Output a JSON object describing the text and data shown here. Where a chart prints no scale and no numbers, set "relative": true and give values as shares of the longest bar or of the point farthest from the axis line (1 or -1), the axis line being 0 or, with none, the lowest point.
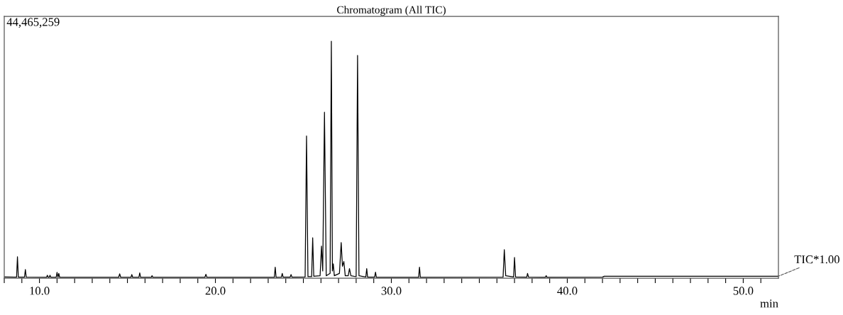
{
  "chart_data": {
    "type": "line",
    "title": "Chromatogram (All TIC)",
    "xlabel": "min",
    "relative": true,
    "grid": false,
    "legend": false,
    "marker": "none",
    "line_style": "solid",
    "annotations": [
      "44,465,259"
    ],
    "xlim": [
      8,
      52
    ],
    "xticks": [
      {
        "value": 8,
        "label": null
      },
      {
        "value": 9,
        "label": null
      },
      {
        "value": 10,
        "label": "10.0"
      },
      {
        "value": 11,
        "label": null
      },
      {
        "value": 12,
        "label": null
      },
      {
        "value": 13,
        "label": null
      },
      {
        "value": 14,
        "label": null
      },
      {
        "value": 15,
        "label": null
      },
      {
        "value": 16,
        "label": null
      },
      {
        "value": 17,
        "label": null
      },
      {
        "value": 18,
        "label": null
      },
      {
        "value": 19,
        "label": null
      },
      {
        "value": 20,
        "label": "20.0"
      },
      {
        "value": 21,
        "label": null
      },
      {
        "value": 22,
        "label": null
      },
      {
        "value": 23,
        "label": null
      },
      {
        "value": 24,
        "label": null
      },
      {
        "value": 25,
        "label": null
      },
      {
        "value": 26,
        "label": null
      },
      {
        "value": 27,
        "label": null
      },
      {
        "value": 28,
        "label": null
      },
      {
        "value": 29,
        "label": null
      },
      {
        "value": 30,
        "label": "30.0"
      },
      {
        "value": 31,
        "label": null
      },
      {
        "value": 32,
        "label": null
      },
      {
        "value": 33,
        "label": null
      },
      {
        "value": 34,
        "label": null
      },
      {
        "value": 35,
        "label": null
      },
      {
        "value": 36,
        "label": null
      },
      {
        "value": 37,
        "label": null
      },
      {
        "value": 38,
        "label": null
      },
      {
        "value": 39,
        "label": null
      },
      {
        "value": 40,
        "label": "40.0"
      },
      {
        "value": 41,
        "label": null
      },
      {
        "value": 42,
        "label": null
      },
      {
        "value": 43,
        "label": null
      },
      {
        "value": 44,
        "label": null
      },
      {
        "value": 45,
        "label": null
      },
      {
        "value": 46,
        "label": null
      },
      {
        "value": 47,
        "label": null
      },
      {
        "value": 48,
        "label": null
      },
      {
        "value": 49,
        "label": null
      },
      {
        "value": 50,
        "label": "50.0"
      },
      {
        "value": 51,
        "label": null
      }
    ],
    "series": [
      {
        "name": "TIC*1.00",
        "color": "#000000",
        "x": [
          8.0,
          8.6,
          8.7,
          8.75,
          8.8,
          9.15,
          9.2,
          9.25,
          10.4,
          10.45,
          10.5,
          10.55,
          10.6,
          10.65,
          10.95,
          11.0,
          11.05,
          11.1,
          11.15,
          14.5,
          14.56,
          14.62,
          15.2,
          15.25,
          15.3,
          15.65,
          15.7,
          15.75,
          16.35,
          16.4,
          16.45,
          19.4,
          19.46,
          19.52,
          23.35,
          23.4,
          23.45,
          23.75,
          23.8,
          23.85,
          24.25,
          24.3,
          24.35,
          25.1,
          25.18,
          25.26,
          25.47,
          25.53,
          25.59,
          25.95,
          26.03,
          26.1,
          26.2,
          26.3,
          26.52,
          26.59,
          26.65,
          26.7,
          26.76,
          27.05,
          27.15,
          27.22,
          27.3,
          27.38,
          27.55,
          27.62,
          27.7,
          28.0,
          28.08,
          28.16,
          28.55,
          28.6,
          28.65,
          29.05,
          29.1,
          29.15,
          31.55,
          31.6,
          31.65,
          36.35,
          36.42,
          36.5,
          36.95,
          37.0,
          37.06,
          37.7,
          37.74,
          37.8,
          38.75,
          38.8,
          38.85,
          42.0,
          42.1,
          52.0
        ],
        "values": [
          0.005,
          0.004,
          0.004,
          0.09,
          0.004,
          0.004,
          0.036,
          0.004,
          0.003,
          0.012,
          0.003,
          0.003,
          0.012,
          0.003,
          0.003,
          0.024,
          0.003,
          0.02,
          0.003,
          0.003,
          0.018,
          0.003,
          0.003,
          0.015,
          0.003,
          0.003,
          0.022,
          0.003,
          0.003,
          0.01,
          0.003,
          0.003,
          0.016,
          0.003,
          0.003,
          0.046,
          0.003,
          0.004,
          0.02,
          0.004,
          0.004,
          0.015,
          0.004,
          0.005,
          0.6,
          0.006,
          0.006,
          0.17,
          0.008,
          0.01,
          0.135,
          0.03,
          0.7,
          0.01,
          0.02,
          1.0,
          0.03,
          0.06,
          0.01,
          0.02,
          0.15,
          0.05,
          0.07,
          0.01,
          0.01,
          0.04,
          0.01,
          0.006,
          0.94,
          0.01,
          0.005,
          0.04,
          0.004,
          0.004,
          0.025,
          0.003,
          0.003,
          0.046,
          0.003,
          0.004,
          0.12,
          0.01,
          0.005,
          0.087,
          0.005,
          0.004,
          0.02,
          0.004,
          0.003,
          0.01,
          0.003,
          0.004,
          0.008,
          0.008
        ]
      }
    ]
  }
}
